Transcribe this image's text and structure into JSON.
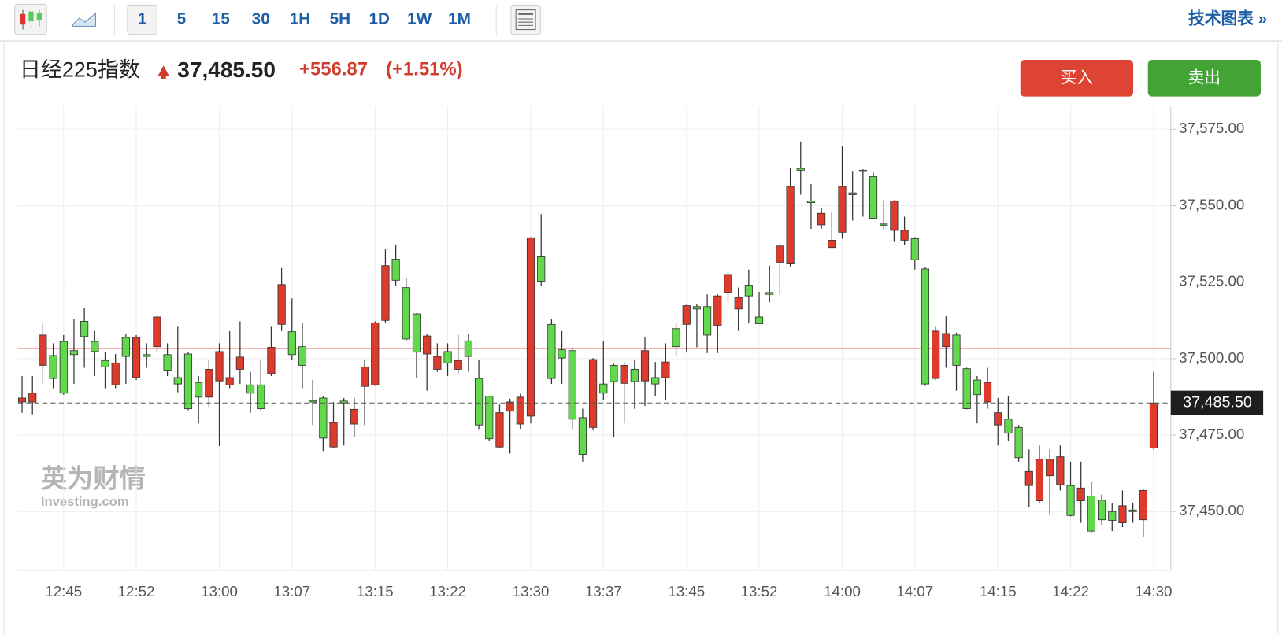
{
  "toolbar": {
    "intervals": [
      "1",
      "5",
      "15",
      "30",
      "1H",
      "5H",
      "1D",
      "1W",
      "1M"
    ],
    "tech_chart_link": "技术图表 »"
  },
  "quote": {
    "name": "日经225指数",
    "price": "37,485.50",
    "change": "+556.87",
    "change_pct": "(+1.51%)"
  },
  "buttons": {
    "buy": "买入",
    "sell": "卖出"
  },
  "watermark": {
    "cn": "英为财情",
    "en": "Investing.com"
  },
  "chart_data": {
    "type": "candlestick",
    "categories": [
      null,
      null,
      null,
      null,
      "12:45",
      null,
      null,
      null,
      null,
      null,
      null,
      "12:52",
      null,
      null,
      null,
      null,
      null,
      null,
      null,
      "13:00",
      null,
      null,
      null,
      null,
      null,
      null,
      "13:07",
      null,
      null,
      null,
      null,
      null,
      null,
      null,
      "13:15",
      null,
      null,
      null,
      null,
      null,
      null,
      "13:22",
      null,
      null,
      null,
      null,
      null,
      null,
      null,
      "13:30",
      null,
      null,
      null,
      null,
      null,
      null,
      "13:37",
      null,
      null,
      null,
      null,
      null,
      null,
      null,
      "13:45",
      null,
      null,
      null,
      null,
      null,
      null,
      "13:52",
      null,
      null,
      null,
      null,
      null,
      null,
      null,
      "14:00",
      null,
      null,
      null,
      null,
      null,
      null,
      "14:07",
      null,
      null,
      null,
      null,
      null,
      null,
      null,
      "14:15",
      null,
      null,
      null,
      null,
      null,
      null,
      "14:22",
      null,
      null,
      null,
      null,
      null,
      null,
      null,
      "14:30"
    ],
    "open": [
      37485.8,
      37485.8,
      37497.8,
      37501.0,
      37505.6,
      37502.6,
      37512.2,
      37505.6,
      37499.4,
      37491.4,
      37506.9,
      37493.8,
      37501.3,
      37503.9,
      37501.3,
      37493.8,
      37501.5,
      37492.2,
      37487.4,
      37492.7,
      37491.4,
      37496.5,
      37491.4,
      37491.4,
      37495.1,
      37511.2,
      37508.8,
      37503.9,
      37486.3,
      37487.1,
      37471.1,
      37486.1,
      37478.6,
      37490.9,
      37491.4,
      37512.5,
      37532.5,
      37523.2,
      37514.6,
      37501.5,
      37496.5,
      37502.3,
      37496.5,
      37505.8,
      37493.5,
      37487.7,
      37471.1,
      37482.8,
      37478.6,
      37481.2,
      37533.3,
      37511.2,
      37502.9,
      37502.6,
      37480.7,
      37477.5,
      37491.7,
      37497.8,
      37491.9,
      37496.5,
      37492.7,
      37493.8,
      37493.8,
      37509.8,
      37511.2,
      37517.0,
      37517.0,
      37510.9,
      37521.6,
      37516.2,
      37524.0,
      37513.6,
      37521.6,
      37531.5,
      37531.2,
      37562.2,
      37551.5,
      37543.7,
      37536.3,
      37541.3,
      37554.2,
      37561.6,
      37559.5,
      37544.0,
      37541.9,
      37538.7,
      37539.2,
      37529.3,
      37493.5,
      37503.9,
      37507.7,
      37496.7,
      37493.0,
      37485.8,
      37478.3,
      37480.2,
      37477.5,
      37458.5,
      37453.5,
      37461.7,
      37458.8,
      37458.5,
      37453.5,
      37455.1,
      37453.7,
      37450.0,
      37446.3,
      37450.5,
      37447.3,
      37470.8
    ],
    "high": [
      37494.3,
      37494.3,
      37511.7,
      37505.0,
      37507.7,
      37513.0,
      37516.5,
      37509.0,
      37502.3,
      37501.5,
      37508.2,
      37507.7,
      37505.0,
      37514.4,
      37505.0,
      37510.4,
      37502.3,
      37494.3,
      37499.7,
      37505.0,
      37509.0,
      37512.2,
      37495.7,
      37499.7,
      37510.4,
      37529.6,
      37519.7,
      37511.7,
      37493.0,
      37487.7,
      37485.8,
      37487.1,
      37487.1,
      37499.7,
      37512.2,
      37535.7,
      37537.3,
      37526.4,
      37514.9,
      37508.2,
      37505.0,
      37505.0,
      37507.7,
      37508.2,
      37499.7,
      37487.9,
      37485.0,
      37486.9,
      37488.5,
      37539.7,
      37547.2,
      37512.8,
      37509.0,
      37503.7,
      37483.6,
      37500.2,
      37505.6,
      37498.3,
      37498.9,
      37499.7,
      37506.9,
      37498.9,
      37505.0,
      37511.7,
      37517.6,
      37517.8,
      37521.0,
      37521.0,
      37528.3,
      37523.2,
      37529.1,
      37521.8,
      37530.4,
      37537.6,
      37562.4,
      37571.0,
      37557.1,
      37549.1,
      37547.8,
      37569.4,
      37561.1,
      37561.9,
      37560.8,
      37551.8,
      37551.8,
      37546.4,
      37539.7,
      37529.9,
      37510.4,
      37513.8,
      37508.5,
      37497.0,
      37494.3,
      37497.0,
      37487.1,
      37487.9,
      37478.3,
      37470.3,
      37471.6,
      37470.3,
      37471.6,
      37466.3,
      37466.3,
      37459.6,
      37455.6,
      37452.9,
      37456.9,
      37452.9,
      37457.5,
      37495.7
    ],
    "low": [
      37482.3,
      37481.8,
      37491.7,
      37490.3,
      37488.2,
      37491.7,
      37497.0,
      37494.3,
      37490.3,
      37490.3,
      37491.7,
      37493.0,
      37497.0,
      37502.3,
      37494.3,
      37489.0,
      37483.1,
      37478.8,
      37484.2,
      37471.4,
      37490.3,
      37491.7,
      37482.3,
      37483.1,
      37494.3,
      37509.0,
      37499.7,
      37490.3,
      37478.3,
      37469.8,
      37470.8,
      37471.6,
      37474.3,
      37478.3,
      37491.1,
      37511.7,
      37523.7,
      37505.8,
      37493.8,
      37489.5,
      37495.7,
      37494.3,
      37494.9,
      37495.7,
      37477.0,
      37473.0,
      37470.8,
      37469.0,
      37477.0,
      37478.8,
      37523.7,
      37491.7,
      37491.7,
      37477.0,
      37466.3,
      37476.7,
      37486.3,
      37474.3,
      37478.8,
      37483.6,
      37484.5,
      37487.7,
      37486.3,
      37501.0,
      37502.3,
      37503.7,
      37501.8,
      37501.8,
      37518.4,
      37509.0,
      37511.7,
      37511.4,
      37518.4,
      37521.0,
      37530.1,
      37553.6,
      37542.4,
      37542.4,
      37536.3,
      37539.2,
      37545.1,
      37546.4,
      37545.6,
      37542.4,
      37538.4,
      37537.1,
      37529.1,
      37491.1,
      37493.0,
      37497.0,
      37489.5,
      37483.4,
      37478.8,
      37483.6,
      37471.6,
      37473.0,
      37466.3,
      37451.6,
      37452.9,
      37448.9,
      37456.9,
      37448.4,
      37446.3,
      37443.0,
      37445.7,
      37443.6,
      37444.9,
      37446.3,
      37441.7,
      37470.3
    ],
    "close": [
      37487.1,
      37488.7,
      37507.7,
      37493.5,
      37488.7,
      37501.3,
      37507.2,
      37502.3,
      37497.3,
      37498.6,
      37500.7,
      37506.9,
      37500.7,
      37513.6,
      37496.2,
      37491.7,
      37483.6,
      37487.4,
      37496.5,
      37502.3,
      37493.8,
      37500.5,
      37488.7,
      37483.6,
      37503.7,
      37524.2,
      37501.3,
      37497.8,
      37485.8,
      37474.0,
      37479.1,
      37485.5,
      37483.4,
      37497.3,
      37511.7,
      37530.4,
      37525.6,
      37506.4,
      37502.1,
      37507.4,
      37500.7,
      37498.6,
      37499.4,
      37500.7,
      37478.3,
      37473.8,
      37482.3,
      37485.8,
      37487.4,
      37539.5,
      37525.3,
      37493.5,
      37500.2,
      37480.2,
      37468.7,
      37499.7,
      37488.7,
      37492.5,
      37497.8,
      37492.5,
      37502.6,
      37491.7,
      37498.9,
      37503.9,
      37517.3,
      37516.2,
      37507.7,
      37520.5,
      37527.5,
      37520.0,
      37520.5,
      37511.4,
      37521.0,
      37536.8,
      37556.3,
      37561.6,
      37551.0,
      37547.5,
      37538.7,
      37556.3,
      37553.6,
      37561.4,
      37545.9,
      37543.7,
      37551.5,
      37541.9,
      37532.3,
      37491.7,
      37509.0,
      37508.2,
      37497.8,
      37483.6,
      37488.2,
      37492.2,
      37482.3,
      37475.6,
      37467.6,
      37463.1,
      37467.1,
      37467.1,
      37467.9,
      37448.7,
      37457.7,
      37443.6,
      37447.3,
      37447.1,
      37451.9,
      37450.0,
      37456.9,
      37485.5
    ],
    "up_color": "#dd3b2c",
    "down_color": "#62d94c",
    "ylim": [
      37430.8,
      37582.5
    ],
    "yticks": [
      {
        "value": 37450,
        "label": "37,450.00"
      },
      {
        "value": 37475,
        "label": "37,475.00"
      },
      {
        "value": 37500,
        "label": "37,500.00"
      },
      {
        "value": 37525,
        "label": "37,525.00"
      },
      {
        "value": 37550,
        "label": "37,550.00"
      },
      {
        "value": 37575,
        "label": "37,575.00"
      }
    ],
    "last_price": {
      "value": 37485.5,
      "label": "37,485.50"
    },
    "reference_line": 37503.4,
    "grid": true
  }
}
